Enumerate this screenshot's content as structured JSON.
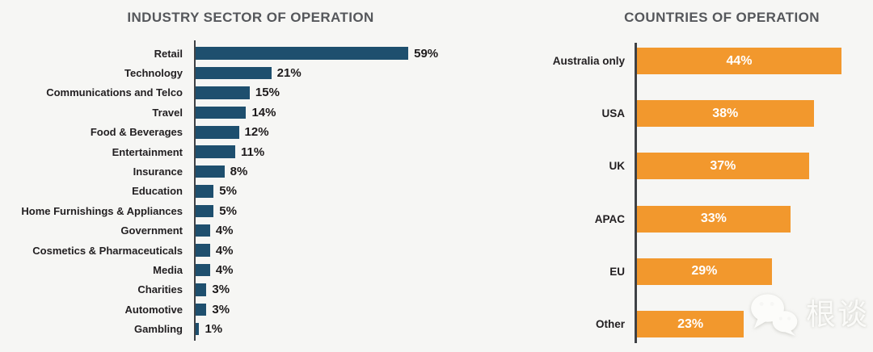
{
  "page": {
    "background": "#f6f6f4"
  },
  "watermark": {
    "text": "根谈",
    "icon": "wechat-logo-icon",
    "color": "#fbfbf9"
  },
  "chart_data": [
    {
      "type": "bar",
      "orientation": "horizontal",
      "title": "INDUSTRY SECTOR OF OPERATION",
      "categories": [
        "Retail",
        "Technology",
        "Communications and Telco",
        "Travel",
        "Food & Beverages",
        "Entertainment",
        "Insurance",
        "Education",
        "Home Furnishings & Appliances",
        "Government",
        "Cosmetics & Pharmaceuticals",
        "Media",
        "Charities",
        "Automotive",
        "Gambling"
      ],
      "values": [
        59,
        21,
        15,
        14,
        12,
        11,
        8,
        5,
        5,
        4,
        4,
        4,
        3,
        3,
        1
      ],
      "value_suffix": "%",
      "bar_color": "#1e4f6e",
      "value_label_position": "outside-right",
      "value_label_color": "#1e1b1c",
      "xlim": [
        0,
        62
      ],
      "grid": false,
      "legend": false
    },
    {
      "type": "bar",
      "orientation": "horizontal",
      "title": "COUNTRIES OF OPERATION",
      "categories": [
        "Australia only",
        "USA",
        "UK",
        "APAC",
        "EU",
        "Other"
      ],
      "values": [
        44,
        38,
        37,
        33,
        29,
        23
      ],
      "value_suffix": "%",
      "bar_color": "#f2982d",
      "value_label_position": "inside-center",
      "value_label_color": "#ffffff",
      "xlim": [
        0,
        46
      ],
      "grid": false,
      "legend": false
    }
  ]
}
